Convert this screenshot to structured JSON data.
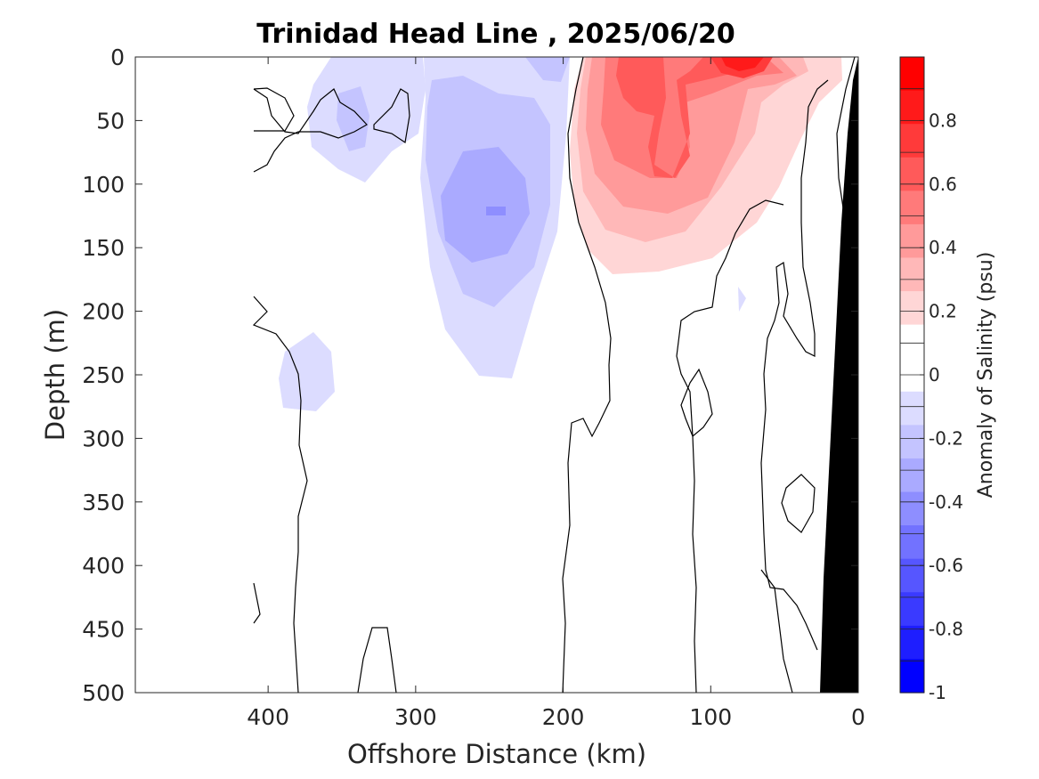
{
  "chart_data": {
    "type": "heatmap",
    "title": "Trinidad Head Line , 2025/06/20",
    "xlabel": "Offshore Distance (km)",
    "ylabel": "Depth (m)",
    "xlim": [
      490,
      0
    ],
    "ylim": [
      0,
      500
    ],
    "x_ticks": [
      "400",
      "300",
      "200",
      "100",
      "0"
    ],
    "y_ticks": [
      "0",
      "50",
      "100",
      "150",
      "200",
      "250",
      "300",
      "350",
      "400",
      "450",
      "500"
    ],
    "colorbar": {
      "label": "Anomaly of Salinity (psu)",
      "range": [
        -1,
        1
      ],
      "levels": [
        -1,
        -0.9,
        -0.8,
        -0.7,
        -0.6,
        -0.5,
        -0.4,
        -0.3,
        -0.2,
        -0.1,
        0,
        0.1,
        0.2,
        0.3,
        0.4,
        0.5,
        0.6,
        0.7,
        0.8,
        0.9,
        1
      ],
      "tick_labels": [
        "0.8",
        "0.6",
        "0.4",
        "0.2",
        "0",
        "-0.2",
        "-0.4",
        "-0.6",
        "-0.8",
        "-1"
      ],
      "colors_top_to_bottom": [
        "#ff0000",
        "#ff1a1a",
        "#ff3a3a",
        "#ff5a5a",
        "#ff7a7a",
        "#ff9a9a",
        "#ffb8b8",
        "#ffd6d6",
        "#ffffff",
        "#ffffff",
        "#dcdcff",
        "#c4c4ff",
        "#aaaaff",
        "#8e8eff",
        "#7272ff",
        "#5656ff",
        "#3a3aff",
        "#1e1eff",
        "#0000ff"
      ]
    },
    "anomaly_regions": [
      {
        "name": "negative anomaly offshore core",
        "min_anomaly": -0.4,
        "x_range_km": [
          200,
          320
        ],
        "depth_range_m": [
          0,
          250
        ]
      },
      {
        "name": "negative anomaly shallow west",
        "min_anomaly": -0.3,
        "x_range_km": [
          320,
          440
        ],
        "depth_range_m": [
          0,
          100
        ]
      },
      {
        "name": "negative anomaly deep west",
        "min_anomaly": -0.1,
        "x_range_km": [
          355,
          400
        ],
        "depth_range_m": [
          215,
          280
        ]
      },
      {
        "name": "positive anomaly nearshore",
        "max_anomaly": 0.9,
        "x_range_km": [
          10,
          190
        ],
        "depth_range_m": [
          0,
          170
        ]
      }
    ],
    "bathymetry_color": "#000000",
    "grid": false,
    "legend": "colorbar-right"
  }
}
